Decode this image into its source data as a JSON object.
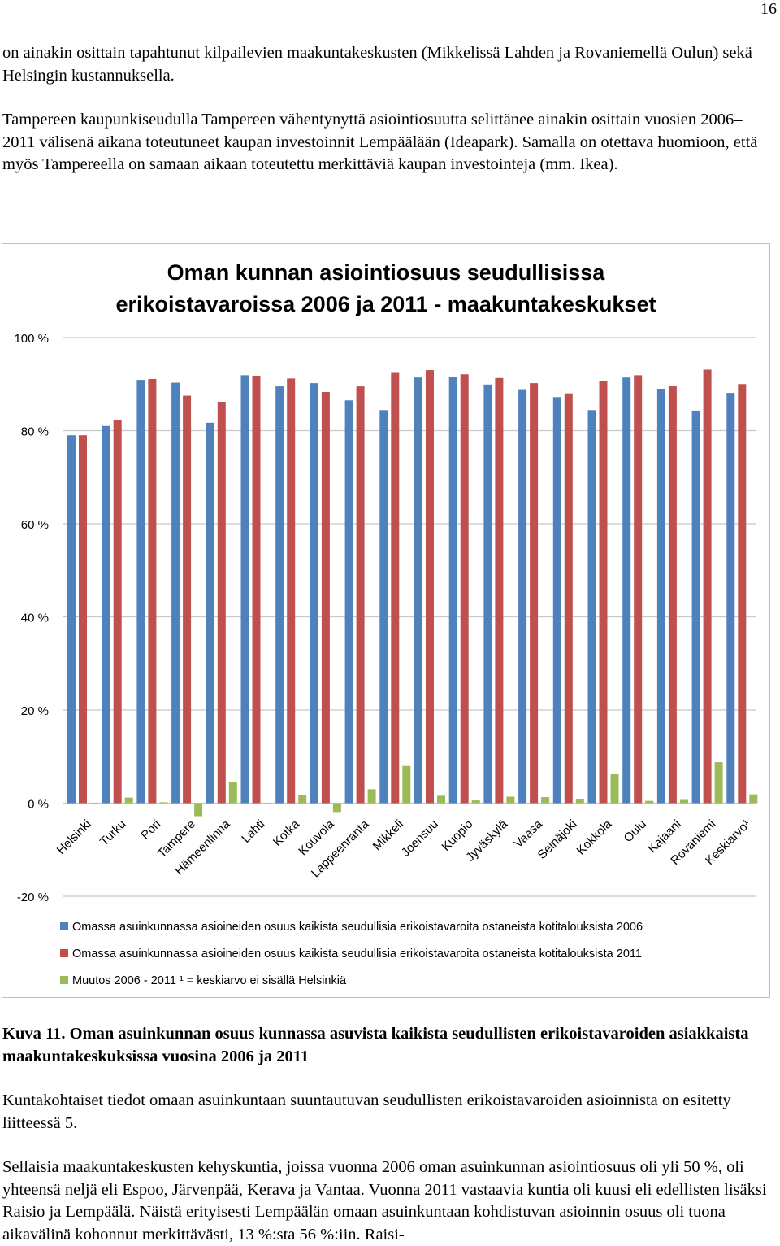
{
  "page": {
    "number": "16",
    "paragraphs": [
      "on ainakin osittain tapahtunut kilpailevien maakuntakeskusten (Mikkelissä Lahden ja Rovaniemellä Oulun) sekä Helsingin kustannuksella.",
      "Tampereen kaupunkiseudulla Tampereen vähentynyttä asiointiosuutta selittänee ainakin osittain vuosien 2006–2011 välisenä aikana toteutuneet kaupan investoinnit Lempäälään (Ideapark). Samalla on otettava huomioon, että myös Tampereella on samaan aikaan toteutettu merkittäviä kaupan investointeja (mm. Ikea).",
      "Kuntakohtaiset tiedot omaan asuinkuntaan suuntautuvan seudullisten erikoistavaroiden asioinnista on esitetty liitteessä 5.",
      "Sellaisia maakuntakeskusten kehyskuntia, joissa vuonna 2006 oman asuinkunnan asiointiosuus oli yli 50 %, oli yhteensä neljä eli Espoo, Järvenpää, Kerava ja Vantaa. Vuonna 2011 vastaavia kuntia oli kuusi eli edellisten lisäksi Raisio ja Lempäälä. Näistä erityisesti Lempäälän omaan asuinkuntaan kohdistuvan asioinnin osuus oli tuona aikavälinä kohonnut merkittävästi, 13 %:sta 56 %:iin. Raisi-"
    ],
    "caption": "Kuva 11. Oman asuinkunnan osuus kunnassa asuvista kaikista seudullisten erikoistavaroiden asiakkaista maakuntakeskuksissa vuosina 2006 ja 2011"
  },
  "chart_data": {
    "type": "bar",
    "title_lines": [
      "Oman kunnan asiointiosuus seudullisissa",
      "erikoistavaroissa 2006 ja 2011 - maakuntakeskukset"
    ],
    "categories": [
      "Helsinki",
      "Turku",
      "Pori",
      "Tampere",
      "Hämeenlinna",
      "Lahti",
      "Kotka",
      "Kouvola",
      "Lappeenranta",
      "Mikkeli",
      "Joensuu",
      "Kuopio",
      "Jyväskylä",
      "Vaasa",
      "Seinäjoki",
      "Kokkola",
      "Oulu",
      "Kajaani",
      "Rovaniemi",
      "Keskiarvo¹"
    ],
    "series": [
      {
        "name": "Omassa asuinkunnassa asioineiden osuus kaikista seudullisia erikoistavaroita ostaneista kotitalouksista 2006",
        "color": "#4f81bd",
        "values": [
          79.0,
          81.0,
          90.9,
          90.3,
          81.7,
          91.9,
          89.5,
          90.2,
          86.5,
          84.4,
          91.4,
          91.5,
          89.9,
          88.9,
          87.2,
          84.4,
          91.4,
          89.0,
          84.3,
          88.1
        ]
      },
      {
        "name": "Omassa asuinkunnassa asioineiden osuus kaikista seudullisia erikoistavaroita ostaneista kotitalouksista 2011",
        "color": "#c0504d",
        "values": [
          79.0,
          82.3,
          91.1,
          87.5,
          86.2,
          91.8,
          91.2,
          88.3,
          89.5,
          92.4,
          93.0,
          92.1,
          91.3,
          90.2,
          88.0,
          90.6,
          91.9,
          89.7,
          93.1,
          90.0
        ]
      },
      {
        "name": "Muutos 2006 - 2011 ¹ = keskiarvo ei sisällä Helsinkiä",
        "color": "#9bbb59",
        "values": [
          0.0,
          1.2,
          0.2,
          -2.8,
          4.5,
          -0.1,
          1.7,
          -1.9,
          3.0,
          8.0,
          1.6,
          0.6,
          1.4,
          1.3,
          0.8,
          6.2,
          0.5,
          0.7,
          8.8,
          1.9
        ]
      }
    ],
    "ylim": [
      -20,
      100
    ],
    "yticks": [
      "-20 %",
      "0 %",
      "20 %",
      "40 %",
      "60 %",
      "80 %",
      "100 %"
    ],
    "ytick_values": [
      -20,
      0,
      20,
      40,
      60,
      80,
      100
    ],
    "grid": true,
    "legend_position": "bottom"
  }
}
